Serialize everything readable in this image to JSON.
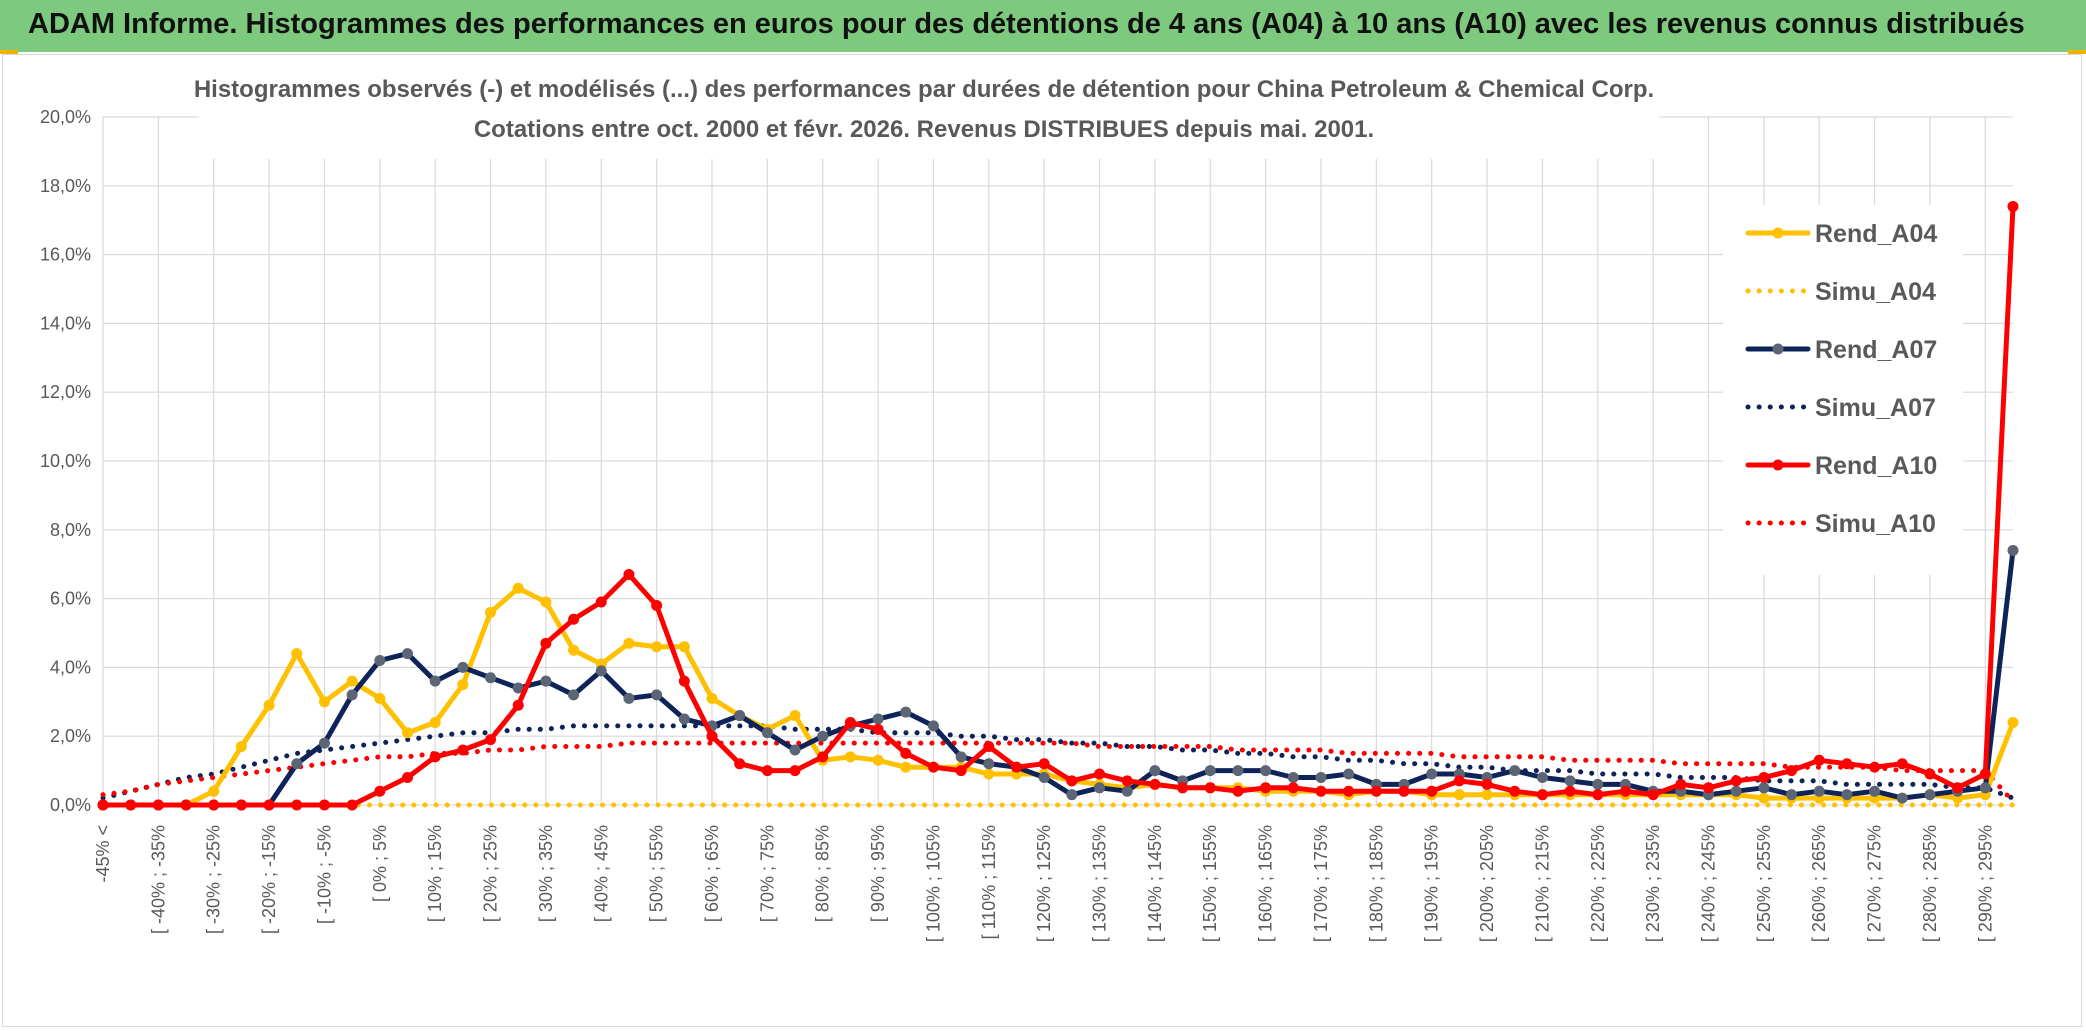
{
  "header": {
    "banner": "ADAM Informe. Histogrammes des performances en euros pour des détentions de 4 ans (A04) à 10 ans (A10) avec les revenus connus distribués"
  },
  "colors": {
    "banner_bg": "#7dc97d",
    "accent_bar": "#f0b400",
    "Rend_A04": "#ffc000",
    "Simu_A04": "#ffc000",
    "Rend_A07": "#0e2459",
    "Simu_A07": "#0e2459",
    "Rend_A10": "#ff0000",
    "Simu_A10": "#ff0000",
    "marker_A07": "#5b6575"
  },
  "chart_data": {
    "type": "line",
    "title": "Histogrammes observés (-) et modélisés (...) des performances par durées de détention pour China Petroleum & Chemical Corp.",
    "subtitle": "Cotations entre oct. 2000 et févr. 2026. Revenus DISTRIBUES depuis mai. 2001.",
    "xlabel": "",
    "ylabel": "",
    "ylim": [
      0,
      20
    ],
    "y_ticks": [
      "0,0%",
      "2,0%",
      "4,0%",
      "6,0%",
      "8,0%",
      "10,0%",
      "12,0%",
      "14,0%",
      "16,0%",
      "18,0%",
      "20,0%"
    ],
    "x_tick_labels": [
      "-45% <",
      "[ -40% ; -35%",
      "[ -30% ; -25%",
      "[ -20% ; -15%",
      "[ -10% ; -5%",
      "[ 0% ; 5%",
      "[ 10% ; 15%",
      "[ 20% ; 25%",
      "[ 30% ; 35%",
      "[ 40% ; 45%",
      "[ 50% ; 55%",
      "[ 60% ; 65%",
      "[ 70% ; 75%",
      "[ 80% ; 85%",
      "[ 90% ; 95%",
      "[ 100% ; 105%",
      "[ 110% ; 115%",
      "[ 120% ; 125%",
      "[ 130% ; 135%",
      "[ 140% ; 145%",
      "[ 150% ; 155%",
      "[ 160% ; 165%",
      "[ 170% ; 175%",
      "[ 180% ; 185%",
      "[ 190% ; 195%",
      "[ 200% ; 205%",
      "[ 210% ; 215%",
      "[ 220% ; 225%",
      "[ 230% ; 235%",
      "[ 240% ; 245%",
      "[ 250% ; 255%",
      "[ 260% ; 265%",
      "[ 270% ; 275%",
      "[ 280% ; 285%",
      "[ 290% ; 295%"
    ],
    "n_points": 70,
    "legend_position": "right",
    "series": [
      {
        "name": "Rend_A04",
        "style": "solid",
        "values": [
          0,
          0,
          0,
          0,
          0.4,
          1.7,
          2.9,
          4.4,
          3.0,
          3.6,
          3.1,
          2.1,
          2.4,
          3.5,
          5.6,
          6.3,
          5.9,
          4.5,
          4.1,
          4.7,
          4.6,
          4.6,
          3.1,
          2.6,
          2.2,
          2.6,
          1.3,
          1.4,
          1.3,
          1.1,
          1.1,
          1.1,
          0.9,
          0.9,
          0.9,
          0.7,
          0.6,
          0.5,
          0.6,
          0.5,
          0.5,
          0.5,
          0.4,
          0.4,
          0.4,
          0.3,
          0.4,
          0.4,
          0.3,
          0.3,
          0.3,
          0.3,
          0.3,
          0.3,
          0.3,
          0.3,
          0.3,
          0.3,
          0.3,
          0.3,
          0.2,
          0.2,
          0.2,
          0.2,
          0.2,
          0.2,
          0.3,
          0.2,
          0.3,
          2.4
        ]
      },
      {
        "name": "Simu_A04",
        "style": "dotted",
        "values": [
          0,
          0,
          0,
          0,
          0,
          0,
          0,
          0,
          0,
          0,
          0,
          0,
          0,
          0,
          0,
          0,
          0,
          0,
          0,
          0,
          0,
          0,
          0,
          0,
          0,
          0,
          0,
          0,
          0,
          0,
          0,
          0,
          0,
          0,
          0,
          0,
          0,
          0,
          0,
          0,
          0,
          0,
          0,
          0,
          0,
          0,
          0,
          0,
          0,
          0,
          0,
          0,
          0,
          0,
          0,
          0,
          0,
          0,
          0,
          0,
          0,
          0,
          0,
          0,
          0,
          0,
          0,
          0,
          0,
          0
        ]
      },
      {
        "name": "Rend_A07",
        "style": "solid",
        "values": [
          0,
          0,
          0,
          0,
          0,
          0,
          0,
          1.2,
          1.8,
          3.2,
          4.2,
          4.4,
          3.6,
          4.0,
          3.7,
          3.4,
          3.6,
          3.2,
          3.9,
          3.1,
          3.2,
          2.5,
          2.3,
          2.6,
          2.1,
          1.6,
          2.0,
          2.3,
          2.5,
          2.7,
          2.3,
          1.4,
          1.2,
          1.1,
          0.8,
          0.3,
          0.5,
          0.4,
          1.0,
          0.7,
          1.0,
          1.0,
          1.0,
          0.8,
          0.8,
          0.9,
          0.6,
          0.6,
          0.9,
          0.9,
          0.8,
          1.0,
          0.8,
          0.7,
          0.6,
          0.6,
          0.4,
          0.4,
          0.3,
          0.4,
          0.5,
          0.3,
          0.4,
          0.3,
          0.4,
          0.2,
          0.3,
          0.4,
          0.5,
          7.4
        ]
      },
      {
        "name": "Simu_A07",
        "style": "dotted",
        "values": [
          0.2,
          0.4,
          0.6,
          0.8,
          0.9,
          1.1,
          1.3,
          1.5,
          1.6,
          1.7,
          1.8,
          1.9,
          2.0,
          2.1,
          2.1,
          2.2,
          2.2,
          2.3,
          2.3,
          2.3,
          2.3,
          2.3,
          2.3,
          2.3,
          2.3,
          2.2,
          2.2,
          2.2,
          2.1,
          2.1,
          2.1,
          2.0,
          2.0,
          1.9,
          1.9,
          1.8,
          1.8,
          1.7,
          1.7,
          1.6,
          1.6,
          1.5,
          1.5,
          1.4,
          1.4,
          1.3,
          1.3,
          1.2,
          1.2,
          1.1,
          1.1,
          1.0,
          1.0,
          1.0,
          0.9,
          0.9,
          0.9,
          0.8,
          0.8,
          0.8,
          0.7,
          0.7,
          0.7,
          0.6,
          0.6,
          0.6,
          0.6,
          0.5,
          0.5,
          0.2
        ]
      },
      {
        "name": "Rend_A10",
        "style": "solid",
        "values": [
          0,
          0,
          0,
          0,
          0,
          0,
          0,
          0,
          0,
          0,
          0.4,
          0.8,
          1.4,
          1.6,
          1.9,
          2.9,
          4.7,
          5.4,
          5.9,
          6.7,
          5.8,
          3.6,
          2.0,
          1.2,
          1.0,
          1.0,
          1.4,
          2.4,
          2.2,
          1.5,
          1.1,
          1.0,
          1.7,
          1.1,
          1.2,
          0.7,
          0.9,
          0.7,
          0.6,
          0.5,
          0.5,
          0.4,
          0.5,
          0.5,
          0.4,
          0.4,
          0.4,
          0.4,
          0.4,
          0.7,
          0.6,
          0.4,
          0.3,
          0.4,
          0.3,
          0.4,
          0.3,
          0.6,
          0.5,
          0.7,
          0.8,
          1.0,
          1.3,
          1.2,
          1.1,
          1.2,
          0.9,
          0.5,
          0.9,
          17.4
        ]
      },
      {
        "name": "Simu_A10",
        "style": "dotted",
        "values": [
          0.3,
          0.4,
          0.6,
          0.7,
          0.8,
          0.9,
          1.0,
          1.1,
          1.2,
          1.3,
          1.4,
          1.4,
          1.5,
          1.5,
          1.6,
          1.6,
          1.7,
          1.7,
          1.7,
          1.8,
          1.8,
          1.8,
          1.8,
          1.8,
          1.8,
          1.8,
          1.8,
          1.8,
          1.8,
          1.8,
          1.8,
          1.8,
          1.8,
          1.8,
          1.8,
          1.8,
          1.7,
          1.7,
          1.7,
          1.7,
          1.7,
          1.6,
          1.6,
          1.6,
          1.6,
          1.5,
          1.5,
          1.5,
          1.5,
          1.4,
          1.4,
          1.4,
          1.4,
          1.3,
          1.3,
          1.3,
          1.3,
          1.2,
          1.2,
          1.2,
          1.2,
          1.1,
          1.1,
          1.1,
          1.1,
          1.0,
          1.0,
          1.0,
          1.0,
          0.1
        ]
      }
    ]
  }
}
